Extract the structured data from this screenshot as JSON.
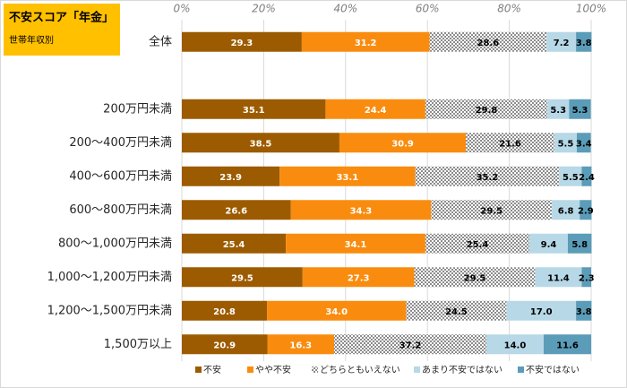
{
  "chart_data": {
    "type": "stacked_bar_horizontal",
    "title": "不安スコア「年金」",
    "subtitle": "世帯年収別",
    "categories": [
      "全体",
      null,
      "200万円未満",
      "200～400万円未満",
      "400～600万円未満",
      "600～800万円未満",
      "800～1,000万円未満",
      "1,000～1,200万円未満",
      "1,200～1,500万円未満",
      "1,500万以上"
    ],
    "series": [
      {
        "name": "不安",
        "color": "#9c5b00",
        "label_color": "#ffffff",
        "values": [
          29.3,
          null,
          35.1,
          38.5,
          23.9,
          26.6,
          25.4,
          29.5,
          20.8,
          20.9
        ],
        "value_labels": [
          "29.3",
          null,
          "35.1",
          "38.5",
          "23.9",
          "26.6",
          "25.4",
          "29.5",
          "20.8",
          "20.9"
        ]
      },
      {
        "name": "やや不安",
        "color": "#f98c0f",
        "label_color": "#ffffff",
        "values": [
          31.2,
          null,
          24.4,
          30.9,
          33.1,
          34.3,
          34.1,
          27.3,
          34.0,
          16.3
        ],
        "value_labels": [
          "31.2",
          null,
          "24.4",
          "30.9",
          "33.1",
          "34.3",
          "34.1",
          "27.3",
          "34.0",
          "16.3"
        ]
      },
      {
        "name": "どちらともいえない",
        "color": "#bfbfbf",
        "pattern": "checker",
        "label_color": "#000000",
        "values": [
          28.6,
          null,
          29.8,
          21.6,
          35.2,
          29.5,
          25.4,
          29.5,
          24.5,
          37.2
        ],
        "value_labels": [
          "28.6",
          null,
          "29.8",
          "21.6",
          "35.2",
          "29.5",
          "25.4",
          "29.5",
          "24.5",
          "37.2"
        ]
      },
      {
        "name": "あまり不安ではない",
        "color": "#b7d8e6",
        "label_color": "#000000",
        "values": [
          7.2,
          null,
          5.3,
          5.5,
          5.5,
          6.8,
          9.4,
          11.4,
          17.0,
          14.0
        ],
        "value_labels": [
          "7.2",
          null,
          "5.3",
          "5.5",
          "5.5",
          "6.8",
          "9.4",
          "11.4",
          "17.0",
          "14.0"
        ]
      },
      {
        "name": "不安ではない",
        "color": "#5b9cb8",
        "label_color": "#000000",
        "values": [
          3.8,
          null,
          5.3,
          3.4,
          2.4,
          2.9,
          5.8,
          2.3,
          3.8,
          11.6
        ],
        "value_labels": [
          "3.8",
          null,
          "5.3",
          "3.4",
          "2.4",
          "2.9",
          "5.8",
          "2.3",
          "3.8",
          "11.6"
        ]
      }
    ],
    "xlim": [
      0,
      100
    ],
    "xticks": [
      {
        "value": 0,
        "label": "0%"
      },
      {
        "value": 20,
        "label": "20%"
      },
      {
        "value": 40,
        "label": "40%"
      },
      {
        "value": 60,
        "label": "60%"
      },
      {
        "value": 80,
        "label": "80%"
      },
      {
        "value": 100,
        "label": "100%"
      }
    ],
    "grid": true,
    "legend": "bottom"
  }
}
